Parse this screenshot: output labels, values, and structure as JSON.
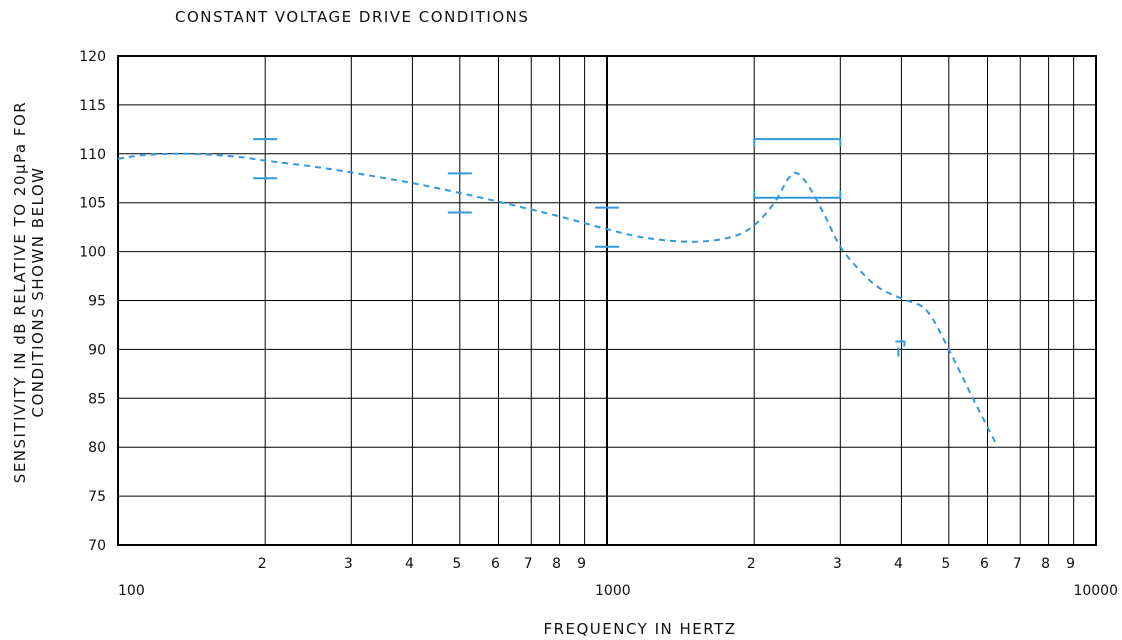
{
  "chart_data": {
    "type": "line",
    "title": "CONSTANT VOLTAGE DRIVE CONDITIONS",
    "xlabel": "FREQUENCY IN HERTZ",
    "ylabel_line1": "SENSITIVITY IN dB RELATIVE TO 20µPa FOR",
    "ylabel_line2": "CONDITIONS SHOWN BELOW",
    "x_scale": "log",
    "xlim": [
      100,
      10000
    ],
    "ylim": [
      70,
      120
    ],
    "grid": true,
    "y_ticks": [
      "70",
      "75",
      "80",
      "85",
      "90",
      "95",
      "100",
      "105",
      "110",
      "115",
      "120"
    ],
    "x_major_ticks": [
      {
        "value": 100,
        "label": "100"
      },
      {
        "value": 1000,
        "label": "1000"
      },
      {
        "value": 10000,
        "label": "10000"
      }
    ],
    "x_minor_ticks": [
      {
        "value": 200,
        "label": "2"
      },
      {
        "value": 300,
        "label": "3"
      },
      {
        "value": 400,
        "label": "4"
      },
      {
        "value": 500,
        "label": "5"
      },
      {
        "value": 600,
        "label": "6"
      },
      {
        "value": 700,
        "label": "7"
      },
      {
        "value": 800,
        "label": "8"
      },
      {
        "value": 900,
        "label": "9"
      },
      {
        "value": 2000,
        "label": "2"
      },
      {
        "value": 3000,
        "label": "3"
      },
      {
        "value": 4000,
        "label": "4"
      },
      {
        "value": 5000,
        "label": "5"
      },
      {
        "value": 6000,
        "label": "6"
      },
      {
        "value": 7000,
        "label": "7"
      },
      {
        "value": 8000,
        "label": "8"
      },
      {
        "value": 9000,
        "label": "9"
      }
    ],
    "series": [
      {
        "style": "dashed",
        "color": "#3399dd",
        "points": [
          [
            100,
            109.5
          ],
          [
            115,
            109.9
          ],
          [
            140,
            110.0
          ],
          [
            175,
            109.7
          ],
          [
            200,
            109.3
          ],
          [
            250,
            108.7
          ],
          [
            300,
            108.1
          ],
          [
            400,
            107.0
          ],
          [
            500,
            106.0
          ],
          [
            600,
            105.1
          ],
          [
            700,
            104.3
          ],
          [
            800,
            103.6
          ],
          [
            900,
            102.9
          ],
          [
            1000,
            102.3
          ],
          [
            1200,
            101.4
          ],
          [
            1500,
            101.0
          ],
          [
            1800,
            101.5
          ],
          [
            2000,
            102.7
          ],
          [
            2200,
            105.0
          ],
          [
            2350,
            107.5
          ],
          [
            2450,
            108.0
          ],
          [
            2600,
            106.5
          ],
          [
            2800,
            103.5
          ],
          [
            3000,
            100.5
          ],
          [
            3300,
            98.0
          ],
          [
            3600,
            96.3
          ],
          [
            4000,
            95.2
          ],
          [
            4500,
            94.0
          ],
          [
            5000,
            90.0
          ],
          [
            5600,
            85.0
          ],
          [
            6300,
            80.0
          ]
        ]
      }
    ],
    "tolerance_marks": [
      {
        "x": 200,
        "upper": 111.5,
        "lower": 107.5
      },
      {
        "x": 500,
        "upper": 108.0,
        "lower": 104.0
      },
      {
        "x": 1000,
        "upper": 104.5,
        "lower": 100.5
      },
      {
        "x_start": 2000,
        "x_end": 3000,
        "upper": 111.5,
        "lower": 105.5
      },
      {
        "x": 4000,
        "lower": 90.5
      }
    ],
    "colors": {
      "grid": "#000000",
      "curve": "#3399dd",
      "tolerance": "#3399dd"
    }
  }
}
